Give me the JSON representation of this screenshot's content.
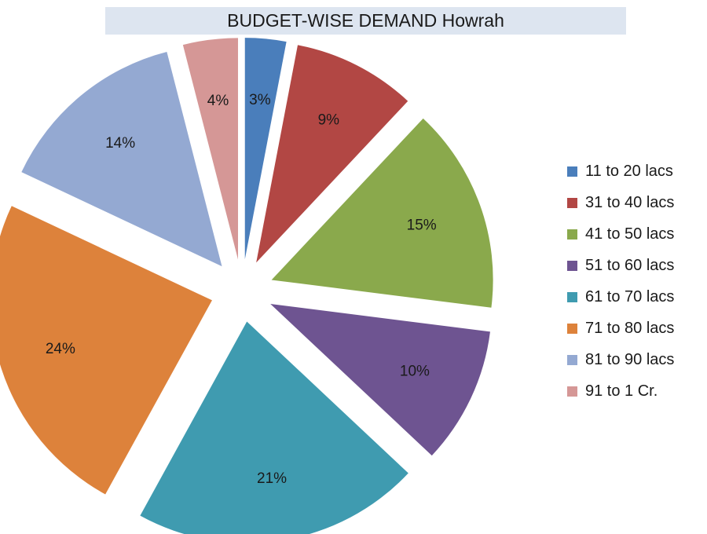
{
  "chart_data": {
    "type": "pie",
    "title": "BUDGET-WISE DEMAND Howrah",
    "exploded": true,
    "legend_position": "right",
    "slices": [
      {
        "label": "11 to 20 lacs",
        "value": 3,
        "value_label": "3%",
        "color": "#4a7ebb"
      },
      {
        "label": "31 to 40 lacs",
        "value": 9,
        "value_label": "9%",
        "color": "#b24744"
      },
      {
        "label": "41 to 50 lacs",
        "value": 15,
        "value_label": "15%",
        "color": "#8aa94c"
      },
      {
        "label": "51 to 60 lacs",
        "value": 10,
        "value_label": "10%",
        "color": "#6e5491"
      },
      {
        "label": "61 to 70 lacs",
        "value": 21,
        "value_label": "21%",
        "color": "#3f9bb0"
      },
      {
        "label": "71 to 80 lacs",
        "value": 24,
        "value_label": "24%",
        "color": "#dd823b"
      },
      {
        "label": "81 to 90 lacs",
        "value": 14,
        "value_label": "14%",
        "color": "#94a9d2"
      },
      {
        "label": "91 to 1 Cr.",
        "value": 4,
        "value_label": "4%",
        "color": "#d59796"
      }
    ]
  }
}
